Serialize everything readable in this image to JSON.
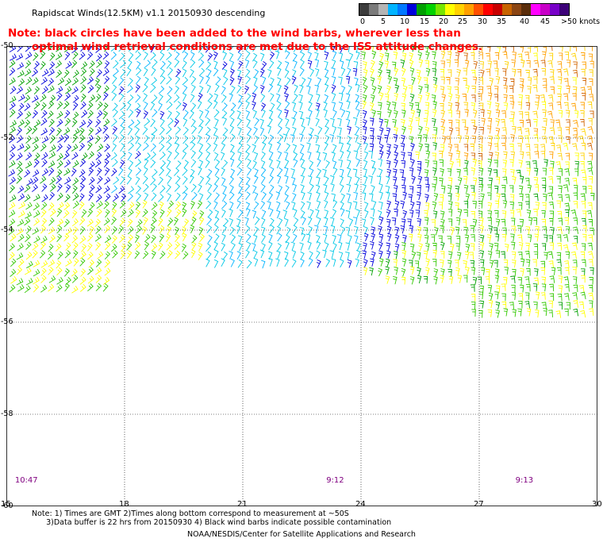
{
  "title": "Rapidscat Winds(12.5KM) v1.1 20150930 descending",
  "note_line1": "Note: black circles have been added to the wind barbs, wherever less than",
  "note_line2": "optimal wind retrieval conditions are met due to the ISS attitude changes.",
  "colorbar": {
    "colors": [
      "#3c3c3c",
      "#7a7a7a",
      "#b4b4b4",
      "#00b4ff",
      "#0078ff",
      "#0000dc",
      "#00a000",
      "#00d200",
      "#78e600",
      "#ffff00",
      "#ffd200",
      "#ffa000",
      "#ff5000",
      "#ff0000",
      "#c80000",
      "#c86400",
      "#8b4513",
      "#5a2d0a",
      "#ff00ff",
      "#c800c8",
      "#7800c8",
      "#3c0078"
    ],
    "labels": [
      "0",
      "5",
      "10",
      "15",
      "20",
      "25",
      "30",
      "35",
      "40",
      "45",
      ">50 knots"
    ]
  },
  "y_ticks": [
    "-50",
    "-52",
    "-54",
    "-56",
    "-58",
    "-60"
  ],
  "x_ticks": [
    "15",
    "18",
    "21",
    "24",
    "27",
    "30"
  ],
  "time_labels": [
    "10:47",
    "9:12",
    "9:13"
  ],
  "footnote_line1": "Note: 1) Times are GMT 2)Times along bottom correspond to measurement at ~50S",
  "footnote_line2": "      3)Data buffer is 22 hrs from 20150930 4) Black wind barbs indicate possible contamination",
  "credit": "NOAA/NESDIS/Center for Satellite Applications and Research",
  "chart_data": {
    "type": "wind-barb-map",
    "title": "Rapidscat Winds(12.5KM) v1.1 20150930 descending",
    "lon_range": [
      15,
      30
    ],
    "lat_range": [
      -60,
      -50
    ],
    "speed_scale_knots": [
      0,
      5,
      10,
      15,
      20,
      25,
      30,
      35,
      40,
      45,
      50
    ],
    "grid": true,
    "pass_times": [
      {
        "lon": 15.5,
        "time": "10:47"
      },
      {
        "lon": 23.4,
        "time": "9:12"
      },
      {
        "lon": 28.2,
        "time": "9:13"
      }
    ],
    "swath_regions": [
      {
        "lon_min": 15,
        "lon_max": 17.5,
        "lat_top": -50,
        "lat_bottom": -55.5,
        "dominant_speed_knots": 15
      },
      {
        "lon_min": 17.5,
        "lon_max": 24,
        "lat_top": -50,
        "lat_bottom": -54.8,
        "dominant_speed_knots": 10
      },
      {
        "lon_min": 24,
        "lon_max": 30,
        "lat_top": -50,
        "lat_bottom": -56,
        "dominant_speed_knots": 20
      },
      {
        "lon_min": 26.5,
        "lon_max": 30,
        "lat_top": -50,
        "lat_bottom": -52.5,
        "dominant_speed_knots": 30
      }
    ]
  }
}
